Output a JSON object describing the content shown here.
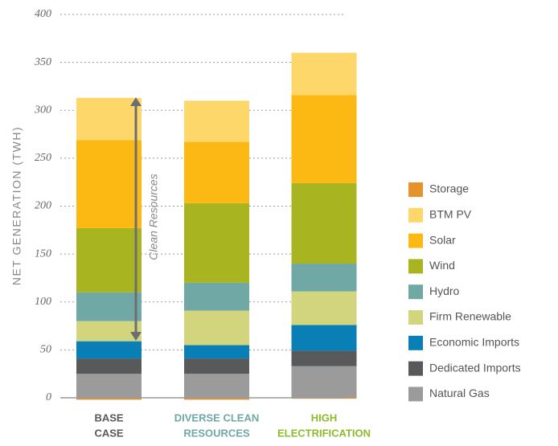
{
  "chart_data": {
    "type": "stacked_bar",
    "ylabel": "NET GENERATION (TWH)",
    "annotation": "Clean Resources",
    "categories": [
      [
        "BASE",
        "CASE"
      ],
      [
        "DIVERSE CLEAN",
        "RESOURCES"
      ],
      [
        "HIGH",
        "ELECTRIFICATION"
      ]
    ],
    "category_colors": [
      "#58595b",
      "#6fa8a4",
      "#8dbb2c"
    ],
    "ylim": [
      0,
      400
    ],
    "yticks": [
      0,
      50,
      100,
      150,
      200,
      250,
      300,
      350,
      400
    ],
    "grid": true,
    "legend": "right",
    "series": [
      {
        "name": "Natural Gas",
        "color": "#9b9b9b",
        "values": [
          25,
          25,
          33
        ]
      },
      {
        "name": "Dedicated Imports",
        "color": "#58595b",
        "values": [
          16,
          16,
          16
        ]
      },
      {
        "name": "Economic Imports",
        "color": "#0a7fb5",
        "values": [
          18,
          14,
          27
        ]
      },
      {
        "name": "Firm Renewable",
        "color": "#d3d57e",
        "values": [
          21,
          36,
          35
        ]
      },
      {
        "name": "Hydro",
        "color": "#6fa8a4",
        "values": [
          30,
          29,
          29
        ]
      },
      {
        "name": "Wind",
        "color": "#a9b520",
        "values": [
          67,
          83,
          84
        ]
      },
      {
        "name": "Solar",
        "color": "#fdb913",
        "values": [
          92,
          64,
          92
        ]
      },
      {
        "name": "BTM PV",
        "color": "#fdd76a",
        "values": [
          44,
          43,
          44
        ]
      },
      {
        "name": "Storage",
        "color": "#e8922d",
        "values": [
          -2,
          -2,
          -1
        ]
      }
    ]
  }
}
